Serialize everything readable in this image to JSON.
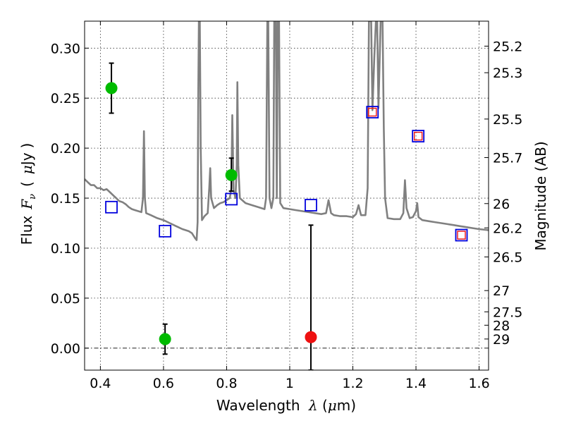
{
  "chart_data": {
    "type": "scatter",
    "xlabel": "Wavelength",
    "xlabel_symbol": "λ",
    "xlabel_unit_open": " (",
    "xlabel_unit_mu": "μ",
    "xlabel_unit_rest": "m)",
    "ylabel_prefix": "Flux",
    "ylabel_symbol": "F",
    "ylabel_sub": "ν",
    "ylabel_open": "(",
    "ylabel_mu": "μ",
    "ylabel_unit": "Jy",
    "ylabel_close": ")",
    "y2label": "Magnitude (AB)",
    "xlim": [
      0.35,
      1.63
    ],
    "ylim": [
      -0.022,
      0.327
    ],
    "x_ticks": [
      0.4,
      0.6,
      0.8,
      1.0,
      1.2,
      1.4,
      1.6
    ],
    "x_tick_labels": [
      "0.4",
      "0.6",
      "0.8",
      "1",
      "1.2",
      "1.4",
      "1.6"
    ],
    "y_ticks": [
      0.0,
      0.05,
      0.1,
      0.15,
      0.2,
      0.25,
      0.3
    ],
    "y_tick_labels": [
      "0.00",
      "0.05",
      "0.10",
      "0.15",
      "0.20",
      "0.25",
      "0.30"
    ],
    "y2_ticks": [
      25.2,
      25.3,
      25.5,
      25.7,
      26,
      26.2,
      26.5,
      27,
      27.5,
      28,
      29
    ],
    "y2_tick_labels": [
      "25.2",
      "25.3",
      "25.5",
      "25.7",
      "26",
      "26.2",
      "26.5",
      "27",
      "27.5",
      "28",
      "29"
    ],
    "grid": true,
    "colors": {
      "template": "#808080",
      "detection": "#00bb00",
      "upper_limit": "#ee1111",
      "model_box": "#0000dd",
      "model_box_inner": "#ee1111",
      "errorbar": "#000000"
    },
    "series": [
      {
        "type": "line",
        "points": [
          [
            0.35,
            0.169
          ],
          [
            0.36,
            0.166
          ],
          [
            0.37,
            0.163
          ],
          [
            0.38,
            0.163
          ],
          [
            0.39,
            0.16
          ],
          [
            0.4,
            0.16
          ],
          [
            0.41,
            0.158
          ],
          [
            0.42,
            0.159
          ],
          [
            0.43,
            0.156
          ],
          [
            0.44,
            0.153
          ],
          [
            0.45,
            0.15
          ],
          [
            0.46,
            0.147
          ],
          [
            0.47,
            0.146
          ],
          [
            0.48,
            0.144
          ],
          [
            0.49,
            0.141
          ],
          [
            0.5,
            0.139
          ],
          [
            0.51,
            0.138
          ],
          [
            0.52,
            0.137
          ],
          [
            0.53,
            0.136
          ],
          [
            0.535,
            0.15
          ],
          [
            0.538,
            0.217
          ],
          [
            0.541,
            0.15
          ],
          [
            0.545,
            0.135
          ],
          [
            0.56,
            0.133
          ],
          [
            0.58,
            0.13
          ],
          [
            0.6,
            0.128
          ],
          [
            0.62,
            0.125
          ],
          [
            0.64,
            0.122
          ],
          [
            0.66,
            0.119
          ],
          [
            0.68,
            0.117
          ],
          [
            0.69,
            0.115
          ],
          [
            0.7,
            0.11
          ],
          [
            0.705,
            0.108
          ],
          [
            0.708,
            0.126
          ],
          [
            0.71,
            0.25
          ],
          [
            0.712,
            0.327
          ],
          [
            0.715,
            0.327
          ],
          [
            0.718,
            0.2
          ],
          [
            0.722,
            0.128
          ],
          [
            0.73,
            0.132
          ],
          [
            0.74,
            0.135
          ],
          [
            0.745,
            0.16
          ],
          [
            0.748,
            0.18
          ],
          [
            0.751,
            0.15
          ],
          [
            0.76,
            0.14
          ],
          [
            0.77,
            0.143
          ],
          [
            0.78,
            0.145
          ],
          [
            0.79,
            0.146
          ],
          [
            0.8,
            0.148
          ],
          [
            0.81,
            0.15
          ],
          [
            0.815,
            0.16
          ],
          [
            0.818,
            0.233
          ],
          [
            0.822,
            0.158
          ],
          [
            0.828,
            0.15
          ],
          [
            0.832,
            0.183
          ],
          [
            0.834,
            0.266
          ],
          [
            0.837,
            0.183
          ],
          [
            0.842,
            0.15
          ],
          [
            0.86,
            0.145
          ],
          [
            0.88,
            0.143
          ],
          [
            0.9,
            0.141
          ],
          [
            0.92,
            0.139
          ],
          [
            0.925,
            0.15
          ],
          [
            0.929,
            0.327
          ],
          [
            0.932,
            0.327
          ],
          [
            0.936,
            0.15
          ],
          [
            0.942,
            0.14
          ],
          [
            0.948,
            0.15
          ],
          [
            0.951,
            0.327
          ],
          [
            0.956,
            0.327
          ],
          [
            0.959,
            0.15
          ],
          [
            0.962,
            0.327
          ],
          [
            0.966,
            0.327
          ],
          [
            0.97,
            0.145
          ],
          [
            0.98,
            0.14
          ],
          [
            1.0,
            0.139
          ],
          [
            1.02,
            0.138
          ],
          [
            1.04,
            0.137
          ],
          [
            1.06,
            0.136
          ],
          [
            1.08,
            0.135
          ],
          [
            1.1,
            0.134
          ],
          [
            1.115,
            0.135
          ],
          [
            1.123,
            0.148
          ],
          [
            1.131,
            0.135
          ],
          [
            1.14,
            0.133
          ],
          [
            1.16,
            0.132
          ],
          [
            1.18,
            0.132
          ],
          [
            1.2,
            0.131
          ],
          [
            1.21,
            0.134
          ],
          [
            1.218,
            0.143
          ],
          [
            1.226,
            0.133
          ],
          [
            1.24,
            0.133
          ],
          [
            1.247,
            0.16
          ],
          [
            1.251,
            0.327
          ],
          [
            1.258,
            0.327
          ],
          [
            1.262,
            0.238
          ],
          [
            1.268,
            0.29
          ],
          [
            1.273,
            0.327
          ],
          [
            1.277,
            0.327
          ],
          [
            1.281,
            0.24
          ],
          [
            1.288,
            0.327
          ],
          [
            1.294,
            0.327
          ],
          [
            1.298,
            0.22
          ],
          [
            1.302,
            0.15
          ],
          [
            1.31,
            0.13
          ],
          [
            1.33,
            0.129
          ],
          [
            1.35,
            0.129
          ],
          [
            1.36,
            0.135
          ],
          [
            1.365,
            0.168
          ],
          [
            1.37,
            0.14
          ],
          [
            1.38,
            0.13
          ],
          [
            1.39,
            0.131
          ],
          [
            1.4,
            0.137
          ],
          [
            1.404,
            0.145
          ],
          [
            1.408,
            0.131
          ],
          [
            1.42,
            0.128
          ],
          [
            1.44,
            0.127
          ],
          [
            1.46,
            0.126
          ],
          [
            1.48,
            0.125
          ],
          [
            1.5,
            0.124
          ],
          [
            1.52,
            0.123
          ],
          [
            1.54,
            0.122
          ],
          [
            1.56,
            0.121
          ],
          [
            1.58,
            0.12
          ],
          [
            1.6,
            0.119
          ],
          [
            1.63,
            0.118
          ]
        ]
      },
      {
        "type": "errorbar",
        "points": [
          {
            "x": 0.435,
            "y": 0.26,
            "ylow": 0.235,
            "yhigh": 0.285
          },
          {
            "x": 0.605,
            "y": 0.009,
            "ylow": -0.006,
            "yhigh": 0.024
          },
          {
            "x": 0.815,
            "y": 0.173,
            "ylow": 0.157,
            "yhigh": 0.19
          }
        ]
      },
      {
        "type": "errorbar",
        "points": [
          {
            "x": 1.067,
            "y": 0.011,
            "ylow": -0.022,
            "yhigh": 0.123
          }
        ]
      },
      {
        "type": "scatter",
        "points": [
          {
            "x": 0.435,
            "y": 0.141
          },
          {
            "x": 0.605,
            "y": 0.117
          },
          {
            "x": 0.815,
            "y": 0.149
          },
          {
            "x": 1.067,
            "y": 0.143
          },
          {
            "x": 1.262,
            "y": 0.236
          },
          {
            "x": 1.407,
            "y": 0.212
          },
          {
            "x": 1.544,
            "y": 0.113
          }
        ]
      },
      {
        "type": "scatter",
        "points": [
          {
            "x": 1.262,
            "y": 0.236
          },
          {
            "x": 1.407,
            "y": 0.212
          },
          {
            "x": 1.544,
            "y": 0.113
          }
        ]
      }
    ]
  }
}
